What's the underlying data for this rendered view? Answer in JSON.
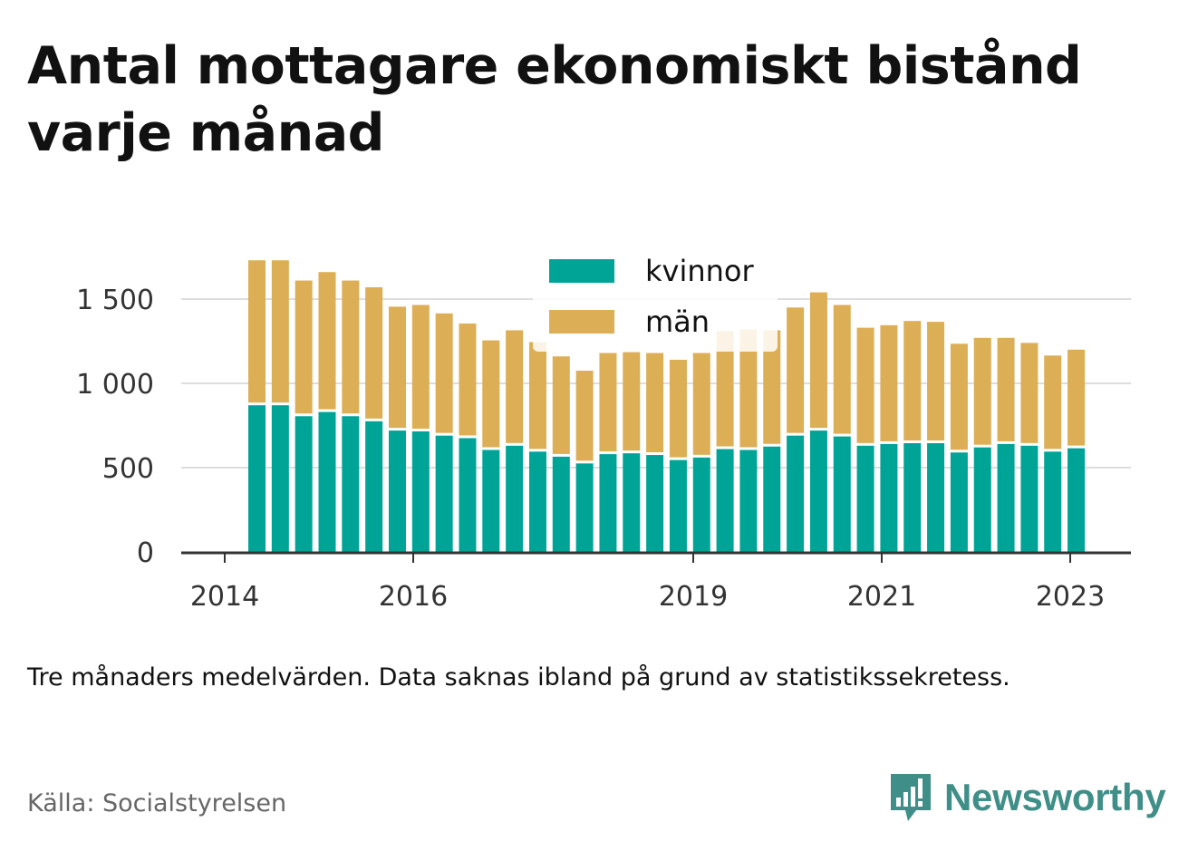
{
  "header": {
    "title": "Antal mottagare ekonomiskt bistånd varje månad"
  },
  "note": "Tre månaders medelvärden. Data saknas ibland på grund av statistikssekretess.",
  "source": "Källa: Socialstyrelsen",
  "brand": {
    "name": "Newsworthy",
    "icon": "newsworthy-logo-icon",
    "color": "#3f8f88"
  },
  "colors": {
    "kvinnor": "#00a497",
    "man": "#dcae56",
    "grid": "#dddddd",
    "axis": "#333333"
  },
  "chart_data": {
    "type": "bar",
    "stacked": true,
    "title": "Antal mottagare ekonomiskt bistånd varje månad",
    "xlabel": "",
    "ylabel": "",
    "ylim": [
      0,
      1750
    ],
    "yticks": [
      0,
      500,
      1000,
      1500
    ],
    "ytick_labels": [
      "0",
      "500",
      "1 000",
      "1 500"
    ],
    "xticks": [
      "2014",
      "2016",
      "2019",
      "2021",
      "2023"
    ],
    "grid": true,
    "legend": "top-center",
    "categories": [
      "2014-Q2",
      "2014-Q3",
      "2014-Q4",
      "2015-Q1",
      "2015-Q2",
      "2015-Q3",
      "2015-Q4",
      "2016-Q1",
      "2016-Q2",
      "2016-Q3",
      "2016-Q4",
      "2017-Q1",
      "2017-Q2",
      "2017-Q3",
      "2017-Q4",
      "2018-Q1",
      "2018-Q2",
      "2018-Q3",
      "2018-Q4",
      "2019-Q1",
      "2019-Q2",
      "2019-Q3",
      "2019-Q4",
      "2020-Q1",
      "2020-Q2",
      "2020-Q3",
      "2020-Q4",
      "2021-Q1",
      "2021-Q2",
      "2021-Q3",
      "2021-Q4",
      "2022-Q1",
      "2022-Q2",
      "2022-Q3",
      "2022-Q4",
      "2023-Q1"
    ],
    "series": [
      {
        "name": "kvinnor",
        "values": [
          870,
          870,
          805,
          830,
          805,
          775,
          720,
          715,
          690,
          675,
          605,
          630,
          595,
          565,
          525,
          580,
          585,
          575,
          545,
          560,
          610,
          605,
          625,
          690,
          720,
          685,
          630,
          640,
          645,
          645,
          590,
          620,
          640,
          630,
          595,
          615
        ]
      },
      {
        "name": "män",
        "values": [
          860,
          860,
          805,
          830,
          805,
          795,
          735,
          750,
          725,
          680,
          650,
          685,
          650,
          595,
          550,
          600,
          600,
          605,
          595,
          620,
          700,
          715,
          690,
          760,
          820,
          780,
          700,
          705,
          725,
          720,
          645,
          650,
          630,
          610,
          570,
          585
        ]
      }
    ]
  }
}
